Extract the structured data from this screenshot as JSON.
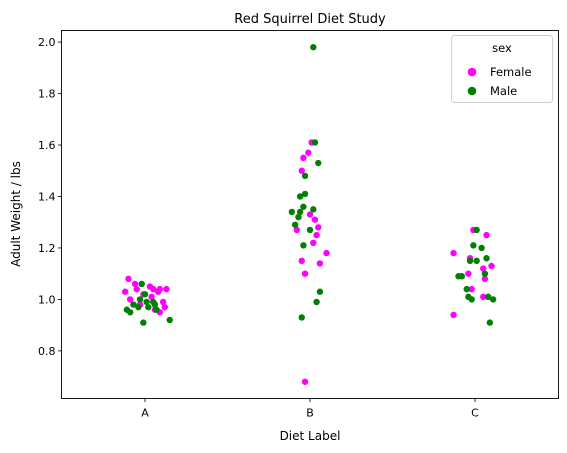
{
  "chart_data": {
    "type": "scatter",
    "style": "strip",
    "title": "Red Squirrel Diet Study",
    "xlabel": "Diet Label",
    "ylabel": "Adult Weight / lbs",
    "categories": [
      "A",
      "B",
      "C"
    ],
    "ylim": [
      0.615,
      2.045
    ],
    "yticks": [
      0.8,
      1.0,
      1.2,
      1.4,
      1.6,
      1.8,
      2.0
    ],
    "ytick_labels": [
      "0.8",
      "1.0",
      "1.2",
      "1.4",
      "1.6",
      "1.8",
      "2.0"
    ],
    "grid": false,
    "legend": {
      "title": "sex",
      "placement": "top-right"
    },
    "series": [
      {
        "name": "Female",
        "color": "#ff00ff",
        "points": [
          [
            "A",
            -0.1,
            1.08
          ],
          [
            "A",
            -0.06,
            1.06
          ],
          [
            "A",
            0.03,
            1.05
          ],
          [
            "A",
            -0.05,
            1.04
          ],
          [
            "A",
            0.05,
            1.04
          ],
          [
            "A",
            0.09,
            1.04
          ],
          [
            "A",
            0.13,
            1.04
          ],
          [
            "A",
            -0.12,
            1.03
          ],
          [
            "A",
            0.08,
            1.03
          ],
          [
            "A",
            -0.01,
            1.02
          ],
          [
            "A",
            0.04,
            1.01
          ],
          [
            "A",
            -0.09,
            1.0
          ],
          [
            "A",
            0.11,
            0.99
          ],
          [
            "A",
            -0.03,
            0.98
          ],
          [
            "A",
            0.12,
            0.97
          ],
          [
            "A",
            0.06,
            0.96
          ],
          [
            "A",
            0.09,
            0.95
          ],
          [
            "B",
            0.01,
            1.61
          ],
          [
            "B",
            -0.01,
            1.57
          ],
          [
            "B",
            -0.04,
            1.55
          ],
          [
            "B",
            -0.05,
            1.5
          ],
          [
            "B",
            0.0,
            1.33
          ],
          [
            "B",
            0.03,
            1.31
          ],
          [
            "B",
            0.05,
            1.28
          ],
          [
            "B",
            -0.08,
            1.27
          ],
          [
            "B",
            0.04,
            1.25
          ],
          [
            "B",
            0.02,
            1.22
          ],
          [
            "B",
            0.1,
            1.18
          ],
          [
            "B",
            -0.05,
            1.15
          ],
          [
            "B",
            0.06,
            1.14
          ],
          [
            "B",
            -0.03,
            1.1
          ],
          [
            "B",
            -0.03,
            0.68
          ],
          [
            "C",
            -0.01,
            1.27
          ],
          [
            "C",
            0.07,
            1.25
          ],
          [
            "C",
            -0.13,
            1.18
          ],
          [
            "C",
            -0.03,
            1.16
          ],
          [
            "C",
            0.1,
            1.13
          ],
          [
            "C",
            0.05,
            1.12
          ],
          [
            "C",
            -0.04,
            1.1
          ],
          [
            "C",
            0.06,
            1.08
          ],
          [
            "C",
            -0.02,
            1.04
          ],
          [
            "C",
            0.05,
            1.01
          ],
          [
            "C",
            -0.13,
            0.94
          ]
        ]
      },
      {
        "name": "Male",
        "color": "#008000",
        "points": [
          [
            "A",
            -0.02,
            1.06
          ],
          [
            "A",
            0.0,
            1.02
          ],
          [
            "A",
            -0.03,
            1.0
          ],
          [
            "A",
            0.01,
            0.99
          ],
          [
            "A",
            0.05,
            0.99
          ],
          [
            "A",
            0.06,
            0.98
          ],
          [
            "A",
            -0.07,
            0.98
          ],
          [
            "A",
            -0.04,
            0.97
          ],
          [
            "A",
            0.02,
            0.97
          ],
          [
            "A",
            -0.11,
            0.96
          ],
          [
            "A",
            0.07,
            0.96
          ],
          [
            "A",
            -0.09,
            0.95
          ],
          [
            "A",
            -0.01,
            0.91
          ],
          [
            "A",
            0.15,
            0.92
          ],
          [
            "B",
            0.02,
            1.98
          ],
          [
            "B",
            0.03,
            1.61
          ],
          [
            "B",
            0.05,
            1.53
          ],
          [
            "B",
            -0.03,
            1.48
          ],
          [
            "B",
            -0.03,
            1.41
          ],
          [
            "B",
            -0.06,
            1.4
          ],
          [
            "B",
            -0.04,
            1.36
          ],
          [
            "B",
            -0.06,
            1.34
          ],
          [
            "B",
            -0.11,
            1.34
          ],
          [
            "B",
            0.02,
            1.35
          ],
          [
            "B",
            -0.07,
            1.32
          ],
          [
            "B",
            -0.09,
            1.29
          ],
          [
            "B",
            0.0,
            1.27
          ],
          [
            "B",
            -0.04,
            1.21
          ],
          [
            "B",
            0.06,
            1.03
          ],
          [
            "B",
            0.04,
            0.99
          ],
          [
            "B",
            -0.05,
            0.93
          ],
          [
            "C",
            0.01,
            1.27
          ],
          [
            "C",
            -0.01,
            1.21
          ],
          [
            "C",
            0.04,
            1.2
          ],
          [
            "C",
            0.07,
            1.16
          ],
          [
            "C",
            0.01,
            1.15
          ],
          [
            "C",
            -0.03,
            1.15
          ],
          [
            "C",
            0.06,
            1.1
          ],
          [
            "C",
            -0.08,
            1.09
          ],
          [
            "C",
            -0.1,
            1.09
          ],
          [
            "C",
            -0.05,
            1.04
          ],
          [
            "C",
            -0.04,
            1.01
          ],
          [
            "C",
            0.08,
            1.01
          ],
          [
            "C",
            -0.02,
            1.0
          ],
          [
            "C",
            0.11,
            1.0
          ],
          [
            "C",
            0.09,
            0.91
          ]
        ]
      }
    ]
  }
}
